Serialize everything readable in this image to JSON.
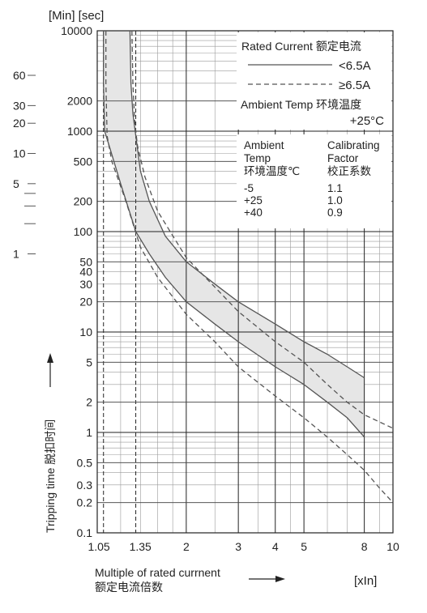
{
  "chart_data": {
    "type": "line",
    "title": "",
    "unit_label": "[Min] [sec]",
    "xlabel_en": "Multiple of rated currnent",
    "xlabel_cn": "额定电流倍数",
    "xunit": "[xIn]",
    "ylabel": "Tripping time 脱扣时间",
    "x_scale": "log",
    "y_scale": "log",
    "xlim": [
      1,
      10
    ],
    "ylim": [
      0.1,
      10000
    ],
    "x_ticks": [
      {
        "v": 1.05,
        "label": "1.05"
      },
      {
        "v": 1.35,
        "label": "1.35"
      },
      {
        "v": 2,
        "label": "2"
      },
      {
        "v": 3,
        "label": "3"
      },
      {
        "v": 4,
        "label": "4"
      },
      {
        "v": 5,
        "label": "5"
      },
      {
        "v": 8,
        "label": "8"
      },
      {
        "v": 10,
        "label": "10"
      }
    ],
    "y_ticks_sec": [
      {
        "v": 10000,
        "label": "10000"
      },
      {
        "v": 2000,
        "label": "2000"
      },
      {
        "v": 1000,
        "label": "1000"
      },
      {
        "v": 500,
        "label": "500"
      },
      {
        "v": 200,
        "label": "200"
      },
      {
        "v": 100,
        "label": "100"
      },
      {
        "v": 50,
        "label": "50"
      },
      {
        "v": 40,
        "label": "40"
      },
      {
        "v": 30,
        "label": "30"
      },
      {
        "v": 20,
        "label": "20"
      },
      {
        "v": 10,
        "label": "10"
      },
      {
        "v": 5,
        "label": "5"
      },
      {
        "v": 2,
        "label": "2"
      },
      {
        "v": 1,
        "label": "1"
      },
      {
        "v": 0.5,
        "label": "0.5"
      },
      {
        "v": 0.3,
        "label": "0.3"
      },
      {
        "v": 0.2,
        "label": "0.2"
      },
      {
        "v": 0.1,
        "label": "0.1"
      }
    ],
    "y_ticks_min": [
      {
        "v": 3600,
        "label": "60"
      },
      {
        "v": 1800,
        "label": "30"
      },
      {
        "v": 1200,
        "label": "20"
      },
      {
        "v": 600,
        "label": "10"
      },
      {
        "v": 300,
        "label": "5"
      },
      {
        "v": 240,
        "label": ""
      },
      {
        "v": 180,
        "label": ""
      },
      {
        "v": 120,
        "label": ""
      },
      {
        "v": 60,
        "label": "1"
      }
    ],
    "series": [
      {
        "name": "<6.5A",
        "style": "solid",
        "color": "#555555",
        "upper": [
          [
            1.29,
            10000
          ],
          [
            1.3,
            3000
          ],
          [
            1.32,
            1500
          ],
          [
            1.35,
            900
          ],
          [
            1.4,
            400
          ],
          [
            1.5,
            200
          ],
          [
            1.7,
            90
          ],
          [
            2,
            50
          ],
          [
            2.5,
            30
          ],
          [
            3,
            20
          ],
          [
            4,
            12
          ],
          [
            5,
            8
          ],
          [
            6,
            6
          ],
          [
            7,
            4.5
          ],
          [
            8,
            3.5
          ]
        ],
        "lower": [
          [
            1.05,
            10000
          ],
          [
            1.05,
            3000
          ],
          [
            1.06,
            1000
          ],
          [
            1.1,
            700
          ],
          [
            1.2,
            300
          ],
          [
            1.35,
            100
          ],
          [
            1.5,
            60
          ],
          [
            1.7,
            35
          ],
          [
            2,
            20
          ],
          [
            2.5,
            12
          ],
          [
            3,
            8
          ],
          [
            4,
            4.5
          ],
          [
            5,
            3
          ],
          [
            6,
            2
          ],
          [
            7,
            1.4
          ],
          [
            8,
            0.9
          ]
        ]
      },
      {
        "name": "≥6.5A",
        "style": "dashed",
        "color": "#555555",
        "upper": [
          [
            1.31,
            10000
          ],
          [
            1.32,
            3000
          ],
          [
            1.34,
            1200
          ],
          [
            1.37,
            700
          ],
          [
            1.45,
            350
          ],
          [
            1.6,
            160
          ],
          [
            2,
            55
          ],
          [
            2.5,
            28
          ],
          [
            3,
            16
          ],
          [
            4,
            8
          ],
          [
            5,
            5
          ],
          [
            6,
            3
          ],
          [
            7,
            2
          ],
          [
            8,
            1.5
          ],
          [
            10,
            1.1
          ]
        ],
        "lower": [
          [
            1.07,
            10000
          ],
          [
            1.07,
            3000
          ],
          [
            1.08,
            900
          ],
          [
            1.12,
            500
          ],
          [
            1.25,
            200
          ],
          [
            1.4,
            70
          ],
          [
            1.6,
            35
          ],
          [
            2,
            15
          ],
          [
            2.5,
            8
          ],
          [
            3,
            4.5
          ],
          [
            4,
            2.3
          ],
          [
            5,
            1.4
          ],
          [
            6,
            0.9
          ],
          [
            7,
            0.6
          ],
          [
            8,
            0.42
          ],
          [
            9,
            0.28
          ],
          [
            10,
            0.2
          ]
        ]
      }
    ],
    "legend": {
      "placement": "top-right",
      "heading": "Rated Current 额定电流",
      "solid_label": "<6.5A",
      "dashed_label": "≥6.5A",
      "ambient_heading": "Ambient Temp 环境温度",
      "ambient_value": "+25°C"
    },
    "table": {
      "placement": "top-right",
      "col1_header": [
        "Ambient",
        "Temp",
        "环境温度℃"
      ],
      "col2_header": [
        "Calibrating",
        "Factor",
        "校正系数"
      ],
      "rows": [
        {
          "temp": "-5",
          "factor": "1.1"
        },
        {
          "temp": "+25",
          "factor": "1.0"
        },
        {
          "temp": "+40",
          "factor": "0.9"
        }
      ]
    }
  }
}
